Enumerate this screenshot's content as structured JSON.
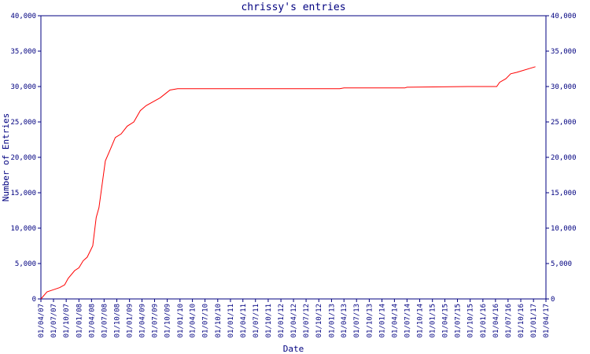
{
  "chart_data": {
    "type": "line",
    "title": "chrissy's entries",
    "xlabel": "Date",
    "ylabel": "Number of Entries",
    "color": "#ff0000",
    "x": [
      "2007-04-01",
      "2007-05-15",
      "2007-06-30",
      "2007-08-15",
      "2007-09-20",
      "2007-10-15",
      "2007-12-01",
      "2008-01-01",
      "2008-02-01",
      "2008-03-01",
      "2008-04-10",
      "2008-05-05",
      "2008-05-25",
      "2008-07-10",
      "2008-08-10",
      "2008-09-20",
      "2008-11-01",
      "2008-12-15",
      "2009-02-01",
      "2009-03-20",
      "2009-05-01",
      "2009-08-10",
      "2009-10-01",
      "2009-10-20",
      "2009-12-15",
      "2013-03-01",
      "2013-04-01",
      "2014-06-15",
      "2014-07-01",
      "2015-09-15",
      "2016-04-10",
      "2016-05-01",
      "2016-06-15",
      "2016-07-20",
      "2016-09-01",
      "2017-01-15"
    ],
    "values": [
      0,
      1000,
      1300,
      1600,
      2000,
      2900,
      4000,
      4400,
      5400,
      5900,
      7500,
      11500,
      12900,
      19500,
      20900,
      22800,
      23300,
      24400,
      25000,
      26600,
      27300,
      28400,
      29200,
      29500,
      29700,
      29700,
      29800,
      29800,
      29900,
      30000,
      30000,
      30600,
      31100,
      31800,
      32000,
      32800
    ],
    "xlim": [
      "2007-04-01",
      "2017-04-01"
    ],
    "xticks": [
      {
        "value": "2007-04-01",
        "label": "01/04/07"
      },
      {
        "value": "2007-07-01",
        "label": "01/07/07"
      },
      {
        "value": "2007-10-01",
        "label": "01/10/07"
      },
      {
        "value": "2008-01-01",
        "label": "01/01/08"
      },
      {
        "value": "2008-04-01",
        "label": "01/04/08"
      },
      {
        "value": "2008-07-01",
        "label": "01/07/08"
      },
      {
        "value": "2008-10-01",
        "label": "01/10/08"
      },
      {
        "value": "2009-01-01",
        "label": "01/01/09"
      },
      {
        "value": "2009-04-01",
        "label": "01/04/09"
      },
      {
        "value": "2009-07-01",
        "label": "01/07/09"
      },
      {
        "value": "2009-10-01",
        "label": "01/10/09"
      },
      {
        "value": "2010-01-01",
        "label": "01/01/10"
      },
      {
        "value": "2010-04-01",
        "label": "01/04/10"
      },
      {
        "value": "2010-07-01",
        "label": "01/07/10"
      },
      {
        "value": "2010-10-01",
        "label": "01/10/10"
      },
      {
        "value": "2011-01-01",
        "label": "01/01/11"
      },
      {
        "value": "2011-04-01",
        "label": "01/04/11"
      },
      {
        "value": "2011-07-01",
        "label": "01/07/11"
      },
      {
        "value": "2011-10-01",
        "label": "01/10/11"
      },
      {
        "value": "2012-01-01",
        "label": "01/01/12"
      },
      {
        "value": "2012-04-01",
        "label": "01/04/12"
      },
      {
        "value": "2012-07-01",
        "label": "01/07/12"
      },
      {
        "value": "2012-10-01",
        "label": "01/10/12"
      },
      {
        "value": "2013-01-01",
        "label": "01/01/13"
      },
      {
        "value": "2013-04-01",
        "label": "01/04/13"
      },
      {
        "value": "2013-07-01",
        "label": "01/07/13"
      },
      {
        "value": "2013-10-01",
        "label": "01/10/13"
      },
      {
        "value": "2014-01-01",
        "label": "01/01/14"
      },
      {
        "value": "2014-04-01",
        "label": "01/04/14"
      },
      {
        "value": "2014-07-01",
        "label": "01/07/14"
      },
      {
        "value": "2014-10-01",
        "label": "01/10/14"
      },
      {
        "value": "2015-01-01",
        "label": "01/01/15"
      },
      {
        "value": "2015-04-01",
        "label": "01/04/15"
      },
      {
        "value": "2015-07-01",
        "label": "01/07/15"
      },
      {
        "value": "2015-10-01",
        "label": "01/10/15"
      },
      {
        "value": "2016-01-01",
        "label": "01/01/16"
      },
      {
        "value": "2016-04-01",
        "label": "01/04/16"
      },
      {
        "value": "2016-07-01",
        "label": "01/07/16"
      },
      {
        "value": "2016-10-01",
        "label": "01/10/16"
      },
      {
        "value": "2017-01-01",
        "label": "01/01/17"
      },
      {
        "value": "2017-04-01",
        "label": "01/04/17"
      }
    ],
    "ylim": [
      0,
      40000
    ],
    "yticks": [
      0,
      {
        "value": 5000,
        "label": "5,000"
      },
      {
        "value": 10000,
        "label": "10,000"
      },
      {
        "value": 15000,
        "label": "15,000"
      },
      {
        "value": 20000,
        "label": "20,000"
      },
      {
        "value": 25000,
        "label": "25,000"
      },
      {
        "value": 30000,
        "label": "30,000"
      },
      {
        "value": 35000,
        "label": "35,000"
      },
      {
        "value": 40000,
        "label": "40,000"
      }
    ],
    "right_axis": true
  }
}
